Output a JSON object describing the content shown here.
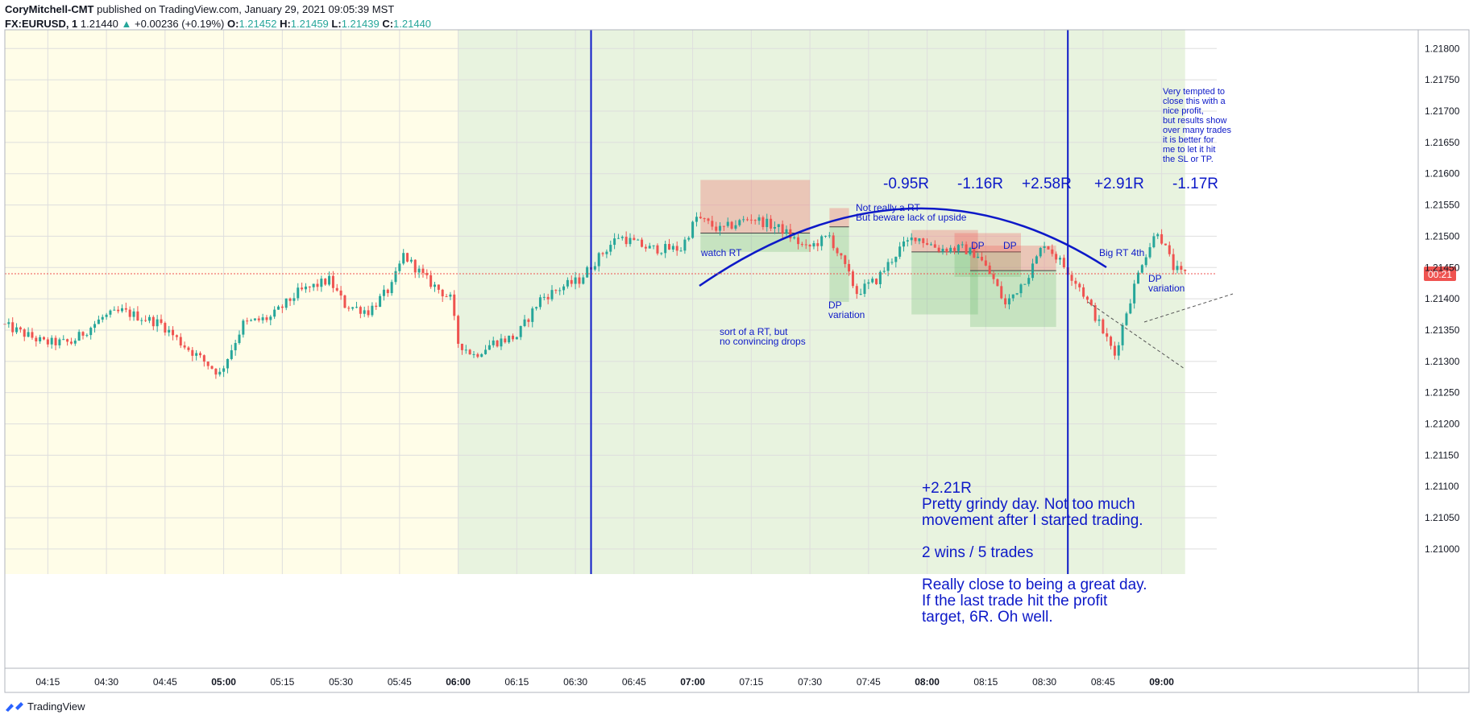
{
  "header": {
    "author": "CoryMitchell-CMT",
    "published_text": "published on TradingView.com, January 29, 2021 09:05:39 MST",
    "symbol": "FX:EURUSD, 1",
    "last": "1.21440",
    "change": "+0.00236 (+0.19%)",
    "o_label": "O:",
    "o_val": "1.21452",
    "h_label": "H:",
    "h_val": "1.21459",
    "l_label": "L:",
    "l_val": "1.21439",
    "c_label": "C:",
    "c_val": "1.21440"
  },
  "footer": {
    "brand": "TradingView"
  },
  "price_tag": "00:21",
  "colors": {
    "up": "#26a69a",
    "down": "#ef5350",
    "annotation": "#0d19c8",
    "premarket_bg": "#fffde8",
    "session_bg": "#e8f3df",
    "grid": "#dedede"
  },
  "chart_data": {
    "type": "candlestick",
    "x_ticks": [
      {
        "t": "04:15",
        "bold": false
      },
      {
        "t": "04:30",
        "bold": false
      },
      {
        "t": "04:45",
        "bold": false
      },
      {
        "t": "05:00",
        "bold": true
      },
      {
        "t": "05:15",
        "bold": false
      },
      {
        "t": "05:30",
        "bold": false
      },
      {
        "t": "05:45",
        "bold": false
      },
      {
        "t": "06:00",
        "bold": true
      },
      {
        "t": "06:15",
        "bold": false
      },
      {
        "t": "06:30",
        "bold": false
      },
      {
        "t": "06:45",
        "bold": false
      },
      {
        "t": "07:00",
        "bold": true
      },
      {
        "t": "07:15",
        "bold": false
      },
      {
        "t": "07:30",
        "bold": false
      },
      {
        "t": "07:45",
        "bold": false
      },
      {
        "t": "08:00",
        "bold": true
      },
      {
        "t": "08:15",
        "bold": false
      },
      {
        "t": "08:30",
        "bold": false
      },
      {
        "t": "08:45",
        "bold": false
      },
      {
        "t": "09:00",
        "bold": true
      }
    ],
    "y_ticks": [
      "1.21800",
      "1.21750",
      "1.21700",
      "1.21650",
      "1.21600",
      "1.21550",
      "1.21500",
      "1.21450",
      "1.21400",
      "1.21350",
      "1.21300",
      "1.21250",
      "1.21200",
      "1.21150",
      "1.21100",
      "1.21050",
      "1.21000"
    ],
    "ylim": [
      1.2096,
      1.2183
    ],
    "last_price": 1.2144,
    "premarket_range": [
      "04:04",
      "06:00"
    ],
    "session_range": [
      "06:00",
      "09:06"
    ],
    "session_lines": [
      "06:34",
      "08:36"
    ],
    "anchors": [
      [
        "04:04",
        1.2136
      ],
      [
        "04:15",
        1.2133
      ],
      [
        "04:22",
        1.2133
      ],
      [
        "04:30",
        1.2137
      ],
      [
        "04:35",
        1.2138
      ],
      [
        "04:45",
        1.2136
      ],
      [
        "04:50",
        1.2133
      ],
      [
        "05:00",
        1.2128
      ],
      [
        "05:06",
        1.2136
      ],
      [
        "05:13",
        1.2137
      ],
      [
        "05:20",
        1.2141
      ],
      [
        "05:28",
        1.2143
      ],
      [
        "05:32",
        1.2139
      ],
      [
        "05:38",
        1.2138
      ],
      [
        "05:44",
        1.2142
      ],
      [
        "05:47",
        1.2147
      ],
      [
        "05:53",
        1.2143
      ],
      [
        "05:59",
        1.214
      ],
      [
        "06:01",
        1.2133
      ],
      [
        "06:05",
        1.2131
      ],
      [
        "06:10",
        1.2133
      ],
      [
        "06:16",
        1.2134
      ],
      [
        "06:22",
        1.214
      ],
      [
        "06:28",
        1.2142
      ],
      [
        "06:32",
        1.2143
      ],
      [
        "06:36",
        1.2146
      ],
      [
        "06:42",
        1.215
      ],
      [
        "06:50",
        1.2148
      ],
      [
        "06:58",
        1.2148
      ],
      [
        "07:02",
        1.2153
      ],
      [
        "07:08",
        1.2151
      ],
      [
        "07:16",
        1.2153
      ],
      [
        "07:24",
        1.2151
      ],
      [
        "07:30",
        1.2148
      ],
      [
        "07:36",
        1.215
      ],
      [
        "07:40",
        1.2145
      ],
      [
        "07:43",
        1.2141
      ],
      [
        "07:48",
        1.2143
      ],
      [
        "07:54",
        1.2148
      ],
      [
        "07:58",
        1.215
      ],
      [
        "08:04",
        1.2148
      ],
      [
        "08:10",
        1.2148
      ],
      [
        "08:14",
        1.2147
      ],
      [
        "08:18",
        1.2143
      ],
      [
        "08:21",
        1.2139
      ],
      [
        "08:27",
        1.2144
      ],
      [
        "08:31",
        1.2149
      ],
      [
        "08:35",
        1.2146
      ],
      [
        "08:40",
        1.2142
      ],
      [
        "08:45",
        1.2136
      ],
      [
        "08:49",
        1.2131
      ],
      [
        "08:52",
        1.2138
      ],
      [
        "08:56",
        1.2146
      ],
      [
        "09:00",
        1.2151
      ],
      [
        "09:04",
        1.2145
      ],
      [
        "09:06",
        1.2144
      ]
    ],
    "big_text": [
      "-0.95R",
      "-1.16R",
      "+2.58R",
      "+2.91R",
      "-1.17R"
    ],
    "annotations": {
      "watch_rt": "watch RT",
      "sort_rt": [
        "sort of a RT, but",
        "no convincing drops"
      ],
      "not_really": [
        "Not really a RT",
        "But beware lack of upside"
      ],
      "dp_var1": [
        "DP",
        "variation"
      ],
      "dp1": "DP",
      "dp2": "DP",
      "big_rt": "Big RT 4th",
      "dp_var2": [
        "DP",
        "variation"
      ],
      "tempted": [
        "Very tempted to",
        "close this with a",
        "nice profit,",
        "but results show",
        "over many trades",
        "it is better for",
        "me to let it hit",
        "the SL or TP."
      ],
      "summary": [
        "+2.21R",
        "Pretty grindy day. Not too much",
        "movement after I started trading.",
        "",
        "2 wins / 5 trades",
        "",
        "Really close to being a great day.",
        "If the last trade hit the profit",
        "target, 6R. Oh well."
      ]
    },
    "trades": [
      {
        "start": "07:02",
        "end": "07:30",
        "entry": 1.21505,
        "stop": 1.2159,
        "target": 1.21475
      },
      {
        "start": "07:35",
        "end": "07:40",
        "entry": 1.21515,
        "stop": 1.21545,
        "target": 1.21395
      },
      {
        "start": "07:56",
        "end": "08:13",
        "entry": 1.21475,
        "stop": 1.2151,
        "target": 1.21375
      },
      {
        "start": "08:07",
        "end": "08:24",
        "entry": 1.21475,
        "stop": 1.21505,
        "target": 1.21435
      },
      {
        "start": "08:11",
        "end": "08:33",
        "entry": 1.21445,
        "stop": 1.21485,
        "target": 1.21355
      }
    ]
  }
}
